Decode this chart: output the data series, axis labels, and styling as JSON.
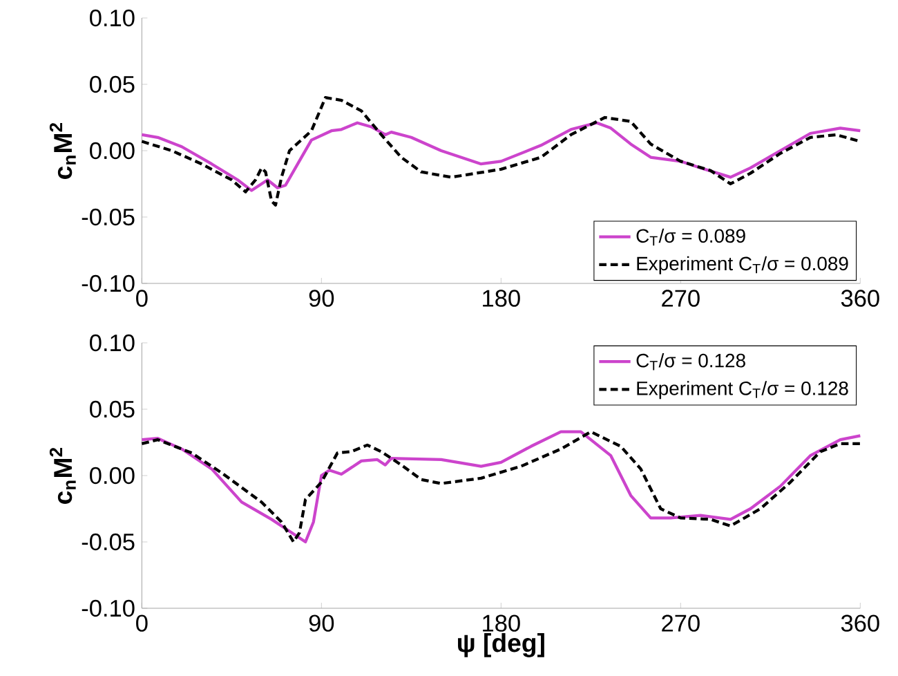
{
  "chart_data": [
    {
      "type": "line",
      "ylabel": "c$_{n}$M$^{2}$",
      "xlim": [
        0,
        360
      ],
      "ylim": [
        -0.1,
        0.1
      ],
      "xticks": [
        0,
        90,
        180,
        270,
        360
      ],
      "yticks": [
        {
          "value": -0.1,
          "label": "-0.10"
        },
        {
          "value": -0.05,
          "label": "-0.05"
        },
        {
          "value": 0,
          "label": "0.00"
        },
        {
          "value": 0.05,
          "label": "0.05"
        },
        {
          "value": 0.1,
          "label": "0.10"
        }
      ],
      "legend": "bottom right",
      "grid": false,
      "series": [
        {
          "name": "C$_{T}$/σ = 0.089",
          "color": "#cc44cc",
          "line_style": "solid",
          "x": [
            0,
            8,
            20,
            35,
            48,
            55,
            60,
            63,
            68,
            72,
            80,
            85,
            95,
            100,
            108,
            115,
            122,
            125,
            135,
            150,
            170,
            180,
            200,
            215,
            228,
            235,
            245,
            255,
            270,
            280,
            295,
            305,
            320,
            335,
            350,
            360
          ],
          "values": [
            0.012,
            0.01,
            0.003,
            -0.01,
            -0.022,
            -0.03,
            -0.025,
            -0.022,
            -0.028,
            -0.026,
            -0.005,
            0.008,
            0.015,
            0.016,
            0.021,
            0.018,
            0.012,
            0.014,
            0.01,
            0.0,
            -0.01,
            -0.008,
            0.004,
            0.016,
            0.021,
            0.017,
            0.005,
            -0.005,
            -0.008,
            -0.013,
            -0.02,
            -0.013,
            0.0,
            0.013,
            0.017,
            0.015
          ]
        },
        {
          "name": "Experiment C$_{T}$/σ = 0.089",
          "color": "#000000",
          "line_style": "dashed",
          "x": [
            0,
            15,
            30,
            45,
            52,
            57,
            60,
            62,
            65,
            67,
            70,
            74,
            85,
            92,
            100,
            110,
            120,
            130,
            140,
            155,
            180,
            200,
            215,
            232,
            245,
            255,
            270,
            285,
            295,
            305,
            320,
            335,
            348,
            360
          ],
          "values": [
            0.007,
            0.0,
            -0.01,
            -0.022,
            -0.031,
            -0.022,
            -0.013,
            -0.016,
            -0.038,
            -0.041,
            -0.02,
            0.0,
            0.015,
            0.04,
            0.038,
            0.03,
            0.012,
            -0.005,
            -0.016,
            -0.02,
            -0.014,
            -0.005,
            0.012,
            0.025,
            0.022,
            0.005,
            -0.008,
            -0.015,
            -0.025,
            -0.017,
            -0.002,
            0.01,
            0.012,
            0.007
          ]
        }
      ]
    },
    {
      "type": "line",
      "xlabel": "ψ [deg]",
      "ylabel": "c$_{n}$M$^{2}$",
      "xlim": [
        0,
        360
      ],
      "ylim": [
        -0.1,
        0.1
      ],
      "xticks": [
        0,
        90,
        180,
        270,
        360
      ],
      "yticks": [
        {
          "value": -0.1,
          "label": "-0.10"
        },
        {
          "value": -0.05,
          "label": "-0.05"
        },
        {
          "value": 0,
          "label": "0.00"
        },
        {
          "value": 0.05,
          "label": "0.05"
        },
        {
          "value": 0.1,
          "label": "0.10"
        }
      ],
      "legend": "top right",
      "grid": false,
      "series": [
        {
          "name": "C$_{T}$/σ = 0.128",
          "color": "#cc44cc",
          "line_style": "solid",
          "x": [
            0,
            8,
            20,
            35,
            50,
            65,
            75,
            82,
            86,
            90,
            94,
            100,
            110,
            118,
            122,
            125,
            150,
            170,
            180,
            195,
            210,
            220,
            235,
            245,
            255,
            265,
            280,
            295,
            305,
            320,
            335,
            350,
            360
          ],
          "values": [
            0.027,
            0.028,
            0.02,
            0.005,
            -0.02,
            -0.033,
            -0.043,
            -0.05,
            -0.035,
            0.0,
            0.004,
            0.001,
            0.011,
            0.012,
            0.008,
            0.013,
            0.012,
            0.007,
            0.01,
            0.022,
            0.033,
            0.033,
            0.015,
            -0.015,
            -0.032,
            -0.032,
            -0.03,
            -0.033,
            -0.025,
            -0.008,
            0.015,
            0.027,
            0.03
          ]
        },
        {
          "name": "Experiment C$_{T}$/σ = 0.128",
          "color": "#000000",
          "line_style": "dashed",
          "x": [
            0,
            8,
            25,
            40,
            60,
            70,
            76,
            79,
            82,
            90,
            98,
            105,
            113,
            120,
            130,
            140,
            150,
            170,
            190,
            210,
            225,
            240,
            250,
            260,
            270,
            285,
            295,
            310,
            325,
            340,
            350,
            360
          ],
          "values": [
            0.024,
            0.027,
            0.017,
            0.002,
            -0.02,
            -0.035,
            -0.05,
            -0.043,
            -0.018,
            -0.005,
            0.017,
            0.018,
            0.023,
            0.018,
            0.008,
            -0.003,
            -0.006,
            -0.002,
            0.007,
            0.02,
            0.033,
            0.022,
            0.005,
            -0.025,
            -0.032,
            -0.033,
            -0.038,
            -0.025,
            -0.005,
            0.018,
            0.024,
            0.024
          ]
        }
      ]
    }
  ]
}
